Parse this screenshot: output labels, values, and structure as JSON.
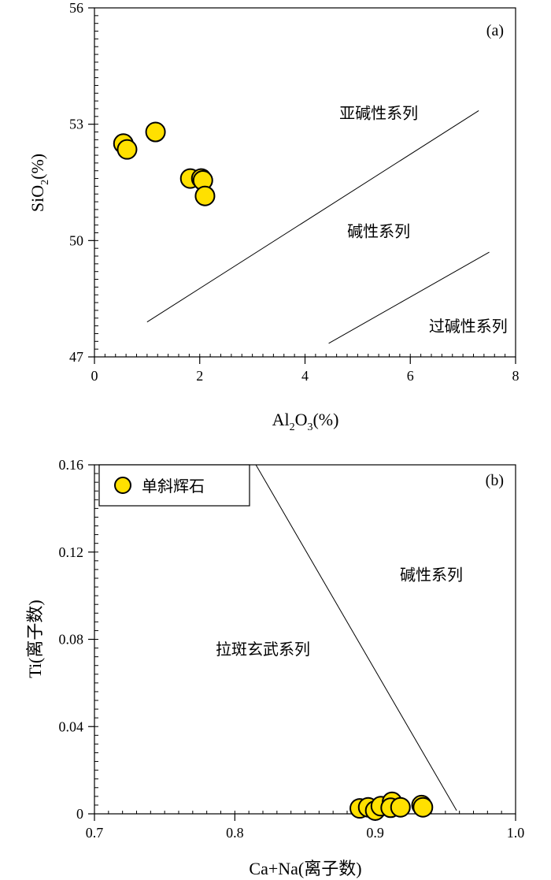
{
  "chart_data": [
    {
      "type": "scatter",
      "panel_label": "(a)",
      "xlabel": {
        "main": "Al",
        "sub1": "2",
        "mid": "O",
        "sub2": "3",
        "tail": "(%)"
      },
      "ylabel": {
        "main": "SiO",
        "sub": "2",
        "tail": "(%)"
      },
      "xlim": [
        0,
        8
      ],
      "ylim": [
        47,
        56
      ],
      "x_ticks": [
        0,
        2,
        4,
        6,
        8
      ],
      "y_ticks": [
        47,
        50,
        53,
        56
      ],
      "x_minor_step": 0.2,
      "y_minor_step": 0.2,
      "grid": false,
      "marker_color": "#ffe000",
      "points": [
        {
          "x": 0.55,
          "y": 52.5
        },
        {
          "x": 0.62,
          "y": 52.35
        },
        {
          "x": 1.16,
          "y": 52.8
        },
        {
          "x": 1.82,
          "y": 51.6
        },
        {
          "x": 2.03,
          "y": 51.6
        },
        {
          "x": 2.06,
          "y": 51.55
        },
        {
          "x": 2.1,
          "y": 51.15
        }
      ],
      "boundaries": [
        {
          "x": [
            1.0,
            7.3
          ],
          "y": [
            47.9,
            53.35
          ]
        },
        {
          "x": [
            4.45,
            7.5
          ],
          "y": [
            47.35,
            49.7
          ]
        }
      ],
      "regions": [
        {
          "label": "亚碱性系列",
          "x": 5.4,
          "y": 53.15
        },
        {
          "label": "碱性系列",
          "x": 5.4,
          "y": 50.1
        },
        {
          "label": "过碱性系列",
          "x": 7.1,
          "y": 47.65
        }
      ]
    },
    {
      "type": "scatter",
      "panel_label": "(b)",
      "xlabel": "Ca+Na(离子数)",
      "ylabel": "Ti(离子数)",
      "xlim": [
        0.7,
        1.0
      ],
      "ylim": [
        0,
        0.16
      ],
      "x_ticks": [
        0.7,
        0.8,
        0.9,
        1.0
      ],
      "x_tick_labels": [
        "0.7",
        "0.8",
        "0.9",
        "1.0"
      ],
      "y_ticks": [
        0,
        0.04,
        0.08,
        0.12,
        0.16
      ],
      "y_tick_labels": [
        "0",
        "0.04",
        "0.08",
        "0.12",
        "0.16"
      ],
      "x_minor_step": 0.01,
      "y_minor_step": 0.004,
      "grid": false,
      "legend": {
        "position": "top-left",
        "entries": [
          "单斜辉石"
        ]
      },
      "marker_color": "#ffe000",
      "points": [
        {
          "x": 0.889,
          "y": 0.0025
        },
        {
          "x": 0.895,
          "y": 0.003
        },
        {
          "x": 0.9,
          "y": 0.0015
        },
        {
          "x": 0.904,
          "y": 0.0035
        },
        {
          "x": 0.912,
          "y": 0.0055
        },
        {
          "x": 0.911,
          "y": 0.0028
        },
        {
          "x": 0.918,
          "y": 0.003
        },
        {
          "x": 0.933,
          "y": 0.004
        },
        {
          "x": 0.934,
          "y": 0.003
        }
      ],
      "boundaries": [
        {
          "x": [
            0.815,
            0.958
          ],
          "y": [
            0.16,
            0.0015
          ]
        }
      ],
      "regions": [
        {
          "label": "碱性系列",
          "x": 0.94,
          "y": 0.107
        },
        {
          "label": "拉斑玄武系列",
          "x": 0.82,
          "y": 0.073
        }
      ]
    }
  ]
}
